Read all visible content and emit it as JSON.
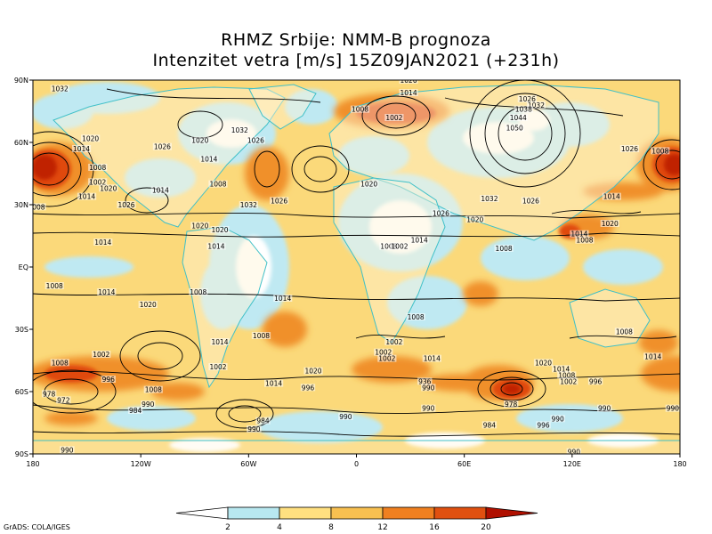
{
  "title_line1": "RHMZ Srbije: NMM-B prognoza",
  "title_line2": "Intenzitet vetra [m/s] 15Z09JAN2021 (+231h)",
  "credit": "GrADS: COLA/IGES",
  "lat_labels": [
    "90N",
    "60N",
    "30N",
    "EQ",
    "30S",
    "60S",
    "90S"
  ],
  "lon_labels": [
    "180",
    "120W",
    "60W",
    "0",
    "60E",
    "120E",
    "180"
  ],
  "colorbar": {
    "ticks": [
      "2",
      "4",
      "8",
      "12",
      "16",
      "20"
    ],
    "colors": [
      "#ffffff",
      "#b8e8f0",
      "#ffe080",
      "#f8c050",
      "#f08020",
      "#e05010",
      "#f03000",
      "#b01000"
    ]
  },
  "colors": {
    "ocean_base": "#fbd97a",
    "land": "#fff5d8",
    "coast": "#40c0c8",
    "calm": "#ffffff",
    "light": "#bfe9f2",
    "strong": "#f0902a",
    "very_strong": "#e04810",
    "extreme": "#c02000",
    "isobar": "#000000"
  },
  "pressure_labels": [
    {
      "text": "1032",
      "lon": -165,
      "lat": 86
    },
    {
      "text": "1020",
      "lon": -148,
      "lat": 62
    },
    {
      "text": "1014",
      "lon": -153,
      "lat": 57
    },
    {
      "text": "1008",
      "lon": -144,
      "lat": 48
    },
    {
      "text": "1002",
      "lon": -144,
      "lat": 41
    },
    {
      "text": "1014",
      "lon": -150,
      "lat": 34
    },
    {
      "text": "1020",
      "lon": -138,
      "lat": 38
    },
    {
      "text": "1026",
      "lon": -128,
      "lat": 30
    },
    {
      "text": "1008",
      "lon": -178,
      "lat": 29
    },
    {
      "text": "1026",
      "lon": -108,
      "lat": 58
    },
    {
      "text": "1014",
      "lon": -109,
      "lat": 37
    },
    {
      "text": "1020",
      "lon": -87,
      "lat": 61
    },
    {
      "text": "1014",
      "lon": -82,
      "lat": 52
    },
    {
      "text": "1032",
      "lon": -65,
      "lat": 66
    },
    {
      "text": "1026",
      "lon": -56,
      "lat": 61
    },
    {
      "text": "1008",
      "lon": -77,
      "lat": 40
    },
    {
      "text": "1032",
      "lon": -60,
      "lat": 30
    },
    {
      "text": "1020",
      "lon": -87,
      "lat": 20
    },
    {
      "text": "1020",
      "lon": -76,
      "lat": 18
    },
    {
      "text": "1026",
      "lon": -43,
      "lat": 32
    },
    {
      "text": "1014",
      "lon": -141,
      "lat": 12
    },
    {
      "text": "1014",
      "lon": -78,
      "lat": 10
    },
    {
      "text": "1008",
      "lon": 2,
      "lat": 76
    },
    {
      "text": "1014",
      "lon": 29,
      "lat": 84
    },
    {
      "text": "1002",
      "lon": 21,
      "lat": 72
    },
    {
      "text": "1020",
      "lon": 29,
      "lat": 90
    },
    {
      "text": "1020",
      "lon": 7,
      "lat": 40
    },
    {
      "text": "1026",
      "lon": 47,
      "lat": 26
    },
    {
      "text": "1008",
      "lon": 18,
      "lat": 10
    },
    {
      "text": "1002",
      "lon": 24,
      "lat": 10
    },
    {
      "text": "1014",
      "lon": 35,
      "lat": 13
    },
    {
      "text": "1026",
      "lon": 95,
      "lat": 81
    },
    {
      "text": "1032",
      "lon": 100,
      "lat": 78
    },
    {
      "text": "1038",
      "lon": 93,
      "lat": 76
    },
    {
      "text": "1044",
      "lon": 90,
      "lat": 72
    },
    {
      "text": "1050",
      "lon": 88,
      "lat": 67
    },
    {
      "text": "1032",
      "lon": 74,
      "lat": 33
    },
    {
      "text": "1026",
      "lon": 97,
      "lat": 32
    },
    {
      "text": "1020",
      "lon": 66,
      "lat": 23
    },
    {
      "text": "1008",
      "lon": 82,
      "lat": 9
    },
    {
      "text": "1026",
      "lon": 152,
      "lat": 57
    },
    {
      "text": "1008",
      "lon": 169,
      "lat": 56
    },
    {
      "text": "1014",
      "lon": 142,
      "lat": 34
    },
    {
      "text": "1020",
      "lon": 141,
      "lat": 21
    },
    {
      "text": "1014",
      "lon": 124,
      "lat": 16
    },
    {
      "text": "1008",
      "lon": 127,
      "lat": 13
    },
    {
      "text": "1008",
      "lon": -168,
      "lat": -9
    },
    {
      "text": "1014",
      "lon": -139,
      "lat": -12
    },
    {
      "text": "1020",
      "lon": -116,
      "lat": -18
    },
    {
      "text": "1008",
      "lon": -88,
      "lat": -12
    },
    {
      "text": "1014",
      "lon": -41,
      "lat": -15
    },
    {
      "text": "1008",
      "lon": -53,
      "lat": -33
    },
    {
      "text": "1014",
      "lon": -76,
      "lat": -36
    },
    {
      "text": "1002",
      "lon": -77,
      "lat": -48
    },
    {
      "text": "1008",
      "lon": 33,
      "lat": -24
    },
    {
      "text": "1002",
      "lon": 21,
      "lat": -36
    },
    {
      "text": "1002",
      "lon": 15,
      "lat": -41
    },
    {
      "text": "1002",
      "lon": 17,
      "lat": -44
    },
    {
      "text": "1014",
      "lon": 42,
      "lat": -44
    },
    {
      "text": "1020",
      "lon": -24,
      "lat": -50
    },
    {
      "text": "1014",
      "lon": -46,
      "lat": -56
    },
    {
      "text": "996",
      "lon": -27,
      "lat": -58
    },
    {
      "text": "1002",
      "lon": -142,
      "lat": -42
    },
    {
      "text": "1008",
      "lon": -165,
      "lat": -46
    },
    {
      "text": "996",
      "lon": -138,
      "lat": -54
    },
    {
      "text": "978",
      "lon": -171,
      "lat": -61
    },
    {
      "text": "972",
      "lon": -163,
      "lat": -64
    },
    {
      "text": "1008",
      "lon": -113,
      "lat": -59
    },
    {
      "text": "984",
      "lon": -123,
      "lat": -69
    },
    {
      "text": "990",
      "lon": -116,
      "lat": -66
    },
    {
      "text": "984",
      "lon": -52,
      "lat": -74
    },
    {
      "text": "990",
      "lon": -57,
      "lat": -78
    },
    {
      "text": "990",
      "lon": -6,
      "lat": -72
    },
    {
      "text": "936",
      "lon": 38,
      "lat": -55
    },
    {
      "text": "990",
      "lon": 40,
      "lat": -58
    },
    {
      "text": "990",
      "lon": 40,
      "lat": -68
    },
    {
      "text": "978",
      "lon": 86,
      "lat": -66
    },
    {
      "text": "984",
      "lon": 74,
      "lat": -76
    },
    {
      "text": "990",
      "lon": 112,
      "lat": -73
    },
    {
      "text": "996",
      "lon": 104,
      "lat": -76
    },
    {
      "text": "1020",
      "lon": 104,
      "lat": -46
    },
    {
      "text": "1014",
      "lon": 114,
      "lat": -49
    },
    {
      "text": "1008",
      "lon": 117,
      "lat": -52
    },
    {
      "text": "1002",
      "lon": 118,
      "lat": -55
    },
    {
      "text": "996",
      "lon": 133,
      "lat": -55
    },
    {
      "text": "990",
      "lon": 138,
      "lat": -68
    },
    {
      "text": "990",
      "lon": 176,
      "lat": -68
    },
    {
      "text": "1008",
      "lon": 149,
      "lat": -31
    },
    {
      "text": "1014",
      "lon": 165,
      "lat": -43
    },
    {
      "text": "990",
      "lon": -161,
      "lat": -88
    },
    {
      "text": "990",
      "lon": 121,
      "lat": -89
    }
  ]
}
